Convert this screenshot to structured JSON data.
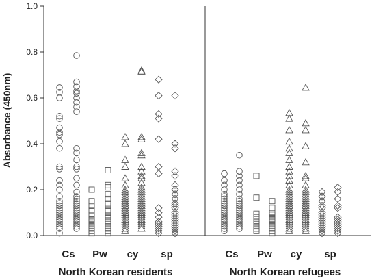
{
  "chart_data": {
    "type": "scatter",
    "ylabel": "Absorbance (450nm)",
    "ylim": [
      0,
      1.0
    ],
    "yticks": [
      "0.0",
      "0.2",
      "0.4",
      "0.6",
      "0.8",
      "1.0"
    ],
    "grid": false,
    "marker_color": "#555555",
    "groups": [
      {
        "name": "North Korean residents",
        "categories": [
          {
            "label": "Cs",
            "columns": [
              {
                "marker": "circle",
                "values": [
                  0.645,
                  0.625,
                  0.6,
                  0.52,
                  0.51,
                  0.47,
                  0.45,
                  0.44,
                  0.41,
                  0.38,
                  0.3,
                  0.29,
                  0.24,
                  0.22,
                  0.2,
                  0.17,
                  0.15,
                  0.14,
                  0.13,
                  0.12,
                  0.11,
                  0.1,
                  0.09,
                  0.08,
                  0.07,
                  0.06,
                  0.05,
                  0.04,
                  0.03,
                  0.01
                ]
              },
              {
                "marker": "circle",
                "values": [
                  0.785,
                  0.67,
                  0.65,
                  0.63,
                  0.62,
                  0.6,
                  0.58,
                  0.56,
                  0.54,
                  0.38,
                  0.36,
                  0.33,
                  0.3,
                  0.29,
                  0.25,
                  0.22,
                  0.19,
                  0.17,
                  0.16,
                  0.15,
                  0.14,
                  0.13,
                  0.12,
                  0.11,
                  0.1,
                  0.09,
                  0.08,
                  0.07,
                  0.06,
                  0.05,
                  0.04,
                  0.03
                ]
              }
            ]
          },
          {
            "label": "Pw",
            "columns": [
              {
                "marker": "square",
                "values": [
                  0.2,
                  0.15,
                  0.13,
                  0.11,
                  0.09,
                  0.07,
                  0.06,
                  0.05,
                  0.04,
                  0.03,
                  0.02,
                  0.01
                ]
              },
              {
                "marker": "square",
                "values": [
                  0.285,
                  0.22,
                  0.21,
                  0.18,
                  0.16,
                  0.14,
                  0.13,
                  0.11,
                  0.1,
                  0.09,
                  0.08,
                  0.06,
                  0.05,
                  0.04,
                  0.03,
                  0.02,
                  0.01
                ]
              }
            ]
          },
          {
            "label": "cy",
            "columns": [
              {
                "marker": "triangle",
                "values": [
                  0.43,
                  0.4,
                  0.33,
                  0.3,
                  0.25,
                  0.22,
                  0.2,
                  0.19,
                  0.18,
                  0.17,
                  0.16,
                  0.15,
                  0.14,
                  0.13,
                  0.12,
                  0.11,
                  0.1,
                  0.09,
                  0.08,
                  0.07,
                  0.06,
                  0.05,
                  0.04,
                  0.03,
                  0.02
                ]
              },
              {
                "marker": "triangle",
                "values": [
                  0.72,
                  0.715,
                  0.43,
                  0.42,
                  0.36,
                  0.35,
                  0.3,
                  0.28,
                  0.26,
                  0.25,
                  0.23,
                  0.21,
                  0.2,
                  0.19,
                  0.18,
                  0.17,
                  0.16,
                  0.15,
                  0.14,
                  0.13,
                  0.12,
                  0.11,
                  0.1,
                  0.09,
                  0.08,
                  0.07,
                  0.06,
                  0.05,
                  0.04,
                  0.03
                ]
              }
            ]
          },
          {
            "label": "sp",
            "columns": [
              {
                "marker": "diamond",
                "values": [
                  0.68,
                  0.61,
                  0.53,
                  0.51,
                  0.42,
                  0.3,
                  0.27,
                  0.12,
                  0.1,
                  0.08,
                  0.06,
                  0.05,
                  0.04,
                  0.03,
                  0.02,
                  0.01
                ]
              },
              {
                "marker": "diamond",
                "values": [
                  0.61,
                  0.4,
                  0.38,
                  0.28,
                  0.26,
                  0.22,
                  0.2,
                  0.18,
                  0.16,
                  0.14,
                  0.13,
                  0.12,
                  0.1,
                  0.09,
                  0.08,
                  0.07,
                  0.06,
                  0.05,
                  0.04,
                  0.03,
                  0.02,
                  0.01
                ]
              }
            ]
          }
        ]
      },
      {
        "name": "North Korean refugees",
        "categories": [
          {
            "label": "Cs",
            "columns": [
              {
                "marker": "circle",
                "values": [
                  0.27,
                  0.24,
                  0.22,
                  0.2,
                  0.18,
                  0.17,
                  0.16,
                  0.15,
                  0.14,
                  0.13,
                  0.12,
                  0.11,
                  0.1,
                  0.09,
                  0.08,
                  0.07,
                  0.06,
                  0.05,
                  0.04,
                  0.03,
                  0.02
                ]
              },
              {
                "marker": "circle",
                "values": [
                  0.35,
                  0.28,
                  0.26,
                  0.24,
                  0.22,
                  0.2,
                  0.18,
                  0.16,
                  0.15,
                  0.14,
                  0.13,
                  0.12,
                  0.11,
                  0.1,
                  0.09,
                  0.08,
                  0.07,
                  0.06,
                  0.05,
                  0.04,
                  0.03
                ]
              }
            ]
          },
          {
            "label": "Pw",
            "columns": [
              {
                "marker": "square",
                "values": [
                  0.26,
                  0.165,
                  0.095,
                  0.08,
                  0.06,
                  0.05,
                  0.04,
                  0.03,
                  0.02
                ]
              },
              {
                "marker": "square",
                "values": [
                  0.15,
                  0.12,
                  0.1,
                  0.09,
                  0.08,
                  0.07,
                  0.06,
                  0.05,
                  0.04,
                  0.03,
                  0.02,
                  0.01
                ]
              }
            ]
          },
          {
            "label": "cy",
            "columns": [
              {
                "marker": "triangle",
                "values": [
                  0.535,
                  0.51,
                  0.46,
                  0.41,
                  0.38,
                  0.36,
                  0.33,
                  0.3,
                  0.28,
                  0.26,
                  0.24,
                  0.22,
                  0.2,
                  0.19,
                  0.18,
                  0.17,
                  0.16,
                  0.15,
                  0.14,
                  0.13,
                  0.12,
                  0.11,
                  0.1,
                  0.09,
                  0.08,
                  0.07,
                  0.06,
                  0.05,
                  0.04,
                  0.03,
                  0.02
                ]
              },
              {
                "marker": "triangle",
                "values": [
                  0.645,
                  0.49,
                  0.46,
                  0.39,
                  0.32,
                  0.26,
                  0.25,
                  0.22,
                  0.2,
                  0.19,
                  0.18,
                  0.17,
                  0.16,
                  0.15,
                  0.14,
                  0.13,
                  0.12,
                  0.11,
                  0.1,
                  0.09,
                  0.08,
                  0.07,
                  0.06,
                  0.05,
                  0.04,
                  0.03,
                  0.02
                ]
              }
            ]
          },
          {
            "label": "sp",
            "columns": [
              {
                "marker": "diamond",
                "values": [
                  0.19,
                  0.17,
                  0.15,
                  0.13,
                  0.12,
                  0.1,
                  0.09,
                  0.08,
                  0.07,
                  0.06,
                  0.05,
                  0.04,
                  0.03,
                  0.02,
                  0.01
                ]
              },
              {
                "marker": "diamond",
                "values": [
                  0.21,
                  0.19,
                  0.16,
                  0.13,
                  0.12,
                  0.08,
                  0.07,
                  0.06,
                  0.05,
                  0.04,
                  0.03,
                  0.02,
                  0.01
                ]
              }
            ]
          }
        ]
      }
    ]
  }
}
